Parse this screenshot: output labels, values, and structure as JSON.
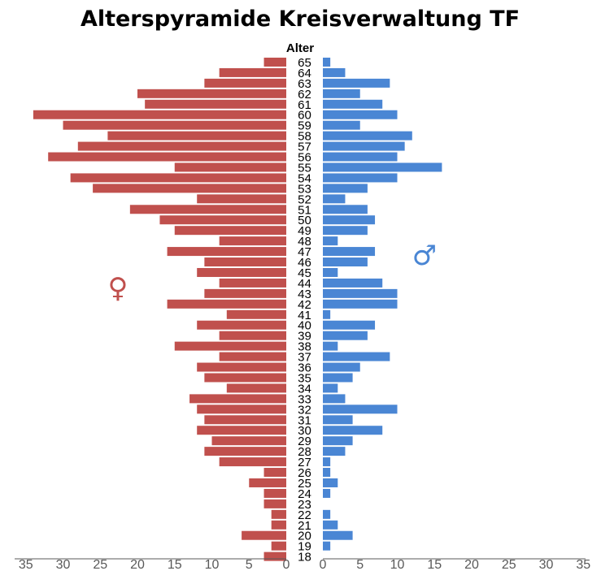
{
  "chart_data": {
    "type": "bar",
    "orientation": "horizontal-pyramid",
    "title": "Alterspyramide Kreisverwaltung TF",
    "category_axis_label": "Alter",
    "categories": [
      "65",
      "64",
      "63",
      "62",
      "61",
      "60",
      "59",
      "58",
      "57",
      "56",
      "55",
      "54",
      "53",
      "52",
      "51",
      "50",
      "49",
      "48",
      "47",
      "46",
      "45",
      "44",
      "43",
      "42",
      "41",
      "40",
      "39",
      "38",
      "37",
      "36",
      "35",
      "34",
      "33",
      "32",
      "31",
      "30",
      "29",
      "28",
      "27",
      "26",
      "25",
      "24",
      "23",
      "22",
      "21",
      "20",
      "19",
      "18"
    ],
    "series": [
      {
        "side": "left",
        "symbol": "♀",
        "color": "#c0504d",
        "values": [
          3,
          9,
          11,
          20,
          19,
          34,
          30,
          24,
          28,
          32,
          15,
          29,
          26,
          12,
          21,
          17,
          15,
          9,
          16,
          11,
          12,
          9,
          11,
          16,
          8,
          12,
          9,
          15,
          9,
          12,
          11,
          8,
          13,
          12,
          11,
          12,
          10,
          11,
          9,
          3,
          5,
          3,
          3,
          2,
          2,
          6,
          2,
          3
        ]
      },
      {
        "side": "right",
        "symbol": "♂",
        "color": "#4a86d4",
        "values": [
          1,
          3,
          9,
          5,
          8,
          10,
          5,
          12,
          11,
          10,
          16,
          10,
          6,
          3,
          6,
          7,
          6,
          2,
          7,
          6,
          2,
          8,
          10,
          10,
          1,
          7,
          6,
          2,
          9,
          5,
          4,
          2,
          3,
          10,
          4,
          8,
          4,
          3,
          1,
          1,
          2,
          1,
          0,
          1,
          2,
          4,
          1,
          0
        ]
      }
    ],
    "xlim": [
      0,
      35
    ],
    "x_ticks": [
      "35",
      "30",
      "25",
      "20",
      "15",
      "10",
      "5",
      "0",
      "0",
      "5",
      "10",
      "15",
      "20",
      "25",
      "30",
      "35"
    ],
    "grid": false,
    "legend": "symbols"
  }
}
